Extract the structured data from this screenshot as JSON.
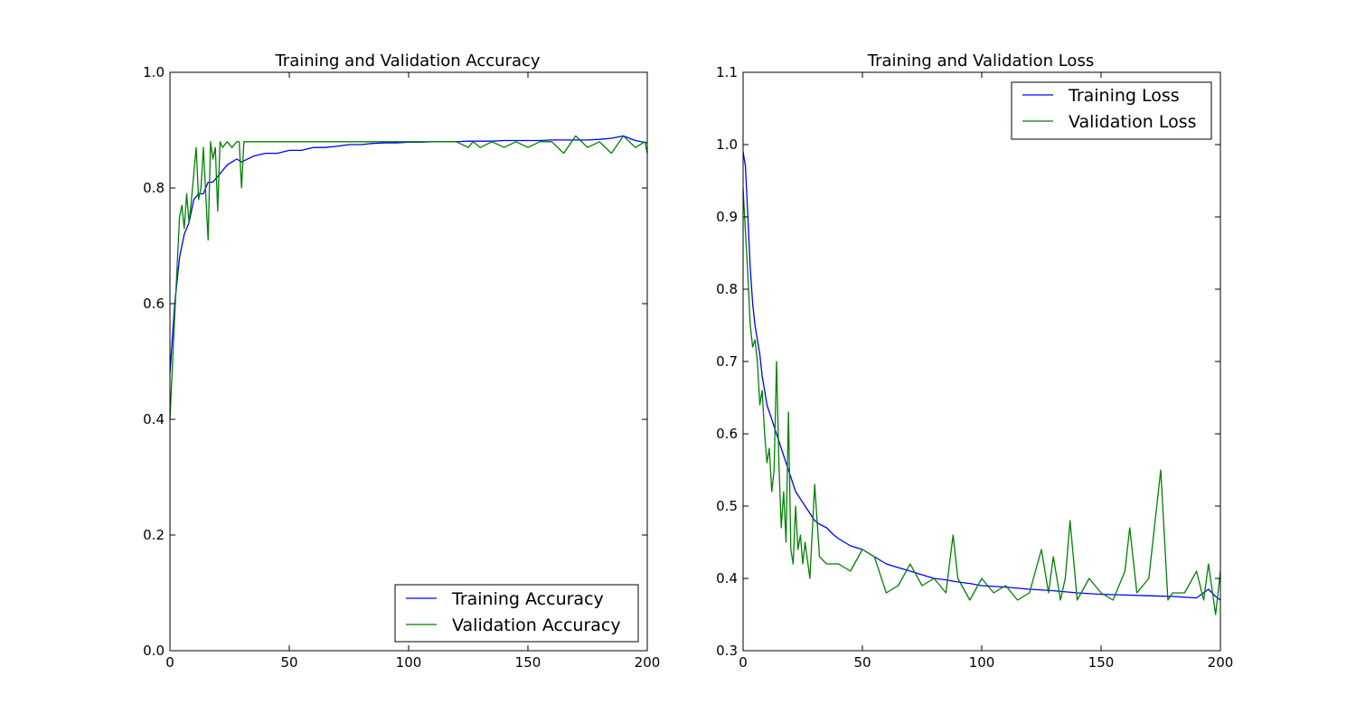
{
  "chart_data": [
    {
      "type": "line",
      "title": "Training and Validation Accuracy",
      "xlabel": "",
      "ylabel": "",
      "xlim": [
        0,
        200
      ],
      "ylim": [
        0.0,
        1.0
      ],
      "x_ticks": [
        "0",
        "50",
        "100",
        "150",
        "200"
      ],
      "y_ticks": [
        "0.0",
        "0.2",
        "0.4",
        "0.6",
        "0.8",
        "1.0"
      ],
      "legend_position": "lower-right",
      "grid": false,
      "series": [
        {
          "name": "Training Accuracy",
          "color": "#0000ff",
          "x": [
            0,
            2,
            4,
            6,
            8,
            10,
            12,
            14,
            16,
            18,
            20,
            22,
            24,
            26,
            28,
            30,
            35,
            40,
            45,
            50,
            55,
            60,
            65,
            70,
            75,
            80,
            85,
            90,
            95,
            100,
            105,
            110,
            115,
            120,
            125,
            130,
            135,
            140,
            145,
            150,
            155,
            160,
            165,
            170,
            175,
            180,
            185,
            190,
            195,
            200
          ],
          "y": [
            0.48,
            0.6,
            0.68,
            0.72,
            0.74,
            0.78,
            0.79,
            0.79,
            0.81,
            0.81,
            0.82,
            0.83,
            0.84,
            0.845,
            0.85,
            0.845,
            0.855,
            0.86,
            0.86,
            0.865,
            0.865,
            0.87,
            0.87,
            0.872,
            0.875,
            0.875,
            0.877,
            0.878,
            0.878,
            0.879,
            0.879,
            0.88,
            0.88,
            0.88,
            0.881,
            0.881,
            0.881,
            0.882,
            0.882,
            0.882,
            0.882,
            0.883,
            0.883,
            0.883,
            0.883,
            0.884,
            0.886,
            0.89,
            0.882,
            0.878
          ]
        },
        {
          "name": "Validation Accuracy",
          "color": "#008000",
          "x": [
            0,
            2,
            4,
            5,
            6,
            7,
            8,
            9,
            11,
            12,
            13,
            14,
            15,
            16,
            17,
            18,
            19,
            20,
            21,
            22,
            24,
            26,
            28,
            29,
            30,
            31,
            33,
            35,
            40,
            45,
            50,
            60,
            70,
            80,
            90,
            100,
            110,
            120,
            125,
            127,
            130,
            135,
            140,
            145,
            150,
            155,
            160,
            165,
            170,
            175,
            180,
            185,
            190,
            195,
            199,
            200
          ],
          "y": [
            0.4,
            0.58,
            0.75,
            0.77,
            0.73,
            0.79,
            0.74,
            0.78,
            0.87,
            0.78,
            0.8,
            0.87,
            0.79,
            0.71,
            0.88,
            0.85,
            0.87,
            0.76,
            0.88,
            0.87,
            0.88,
            0.87,
            0.88,
            0.88,
            0.8,
            0.88,
            0.88,
            0.88,
            0.88,
            0.88,
            0.88,
            0.88,
            0.88,
            0.88,
            0.88,
            0.88,
            0.88,
            0.88,
            0.87,
            0.88,
            0.87,
            0.88,
            0.87,
            0.88,
            0.87,
            0.88,
            0.88,
            0.86,
            0.89,
            0.87,
            0.88,
            0.86,
            0.89,
            0.87,
            0.88,
            0.86
          ]
        }
      ]
    },
    {
      "type": "line",
      "title": "Training and Validation Loss",
      "xlabel": "",
      "ylabel": "",
      "xlim": [
        0,
        200
      ],
      "ylim": [
        0.3,
        1.1
      ],
      "x_ticks": [
        "0",
        "50",
        "100",
        "150",
        "200"
      ],
      "y_ticks": [
        "0.3",
        "0.4",
        "0.5",
        "0.6",
        "0.7",
        "0.8",
        "0.9",
        "1.0",
        "1.1"
      ],
      "legend_position": "upper-right",
      "grid": false,
      "series": [
        {
          "name": "Training Loss",
          "color": "#0000ff",
          "x": [
            0,
            1,
            2,
            3,
            4,
            5,
            6,
            7,
            8,
            9,
            10,
            12,
            14,
            16,
            18,
            20,
            22,
            24,
            26,
            28,
            30,
            32,
            35,
            38,
            40,
            45,
            50,
            55,
            60,
            65,
            70,
            75,
            80,
            85,
            90,
            95,
            100,
            110,
            120,
            130,
            140,
            150,
            160,
            170,
            180,
            190,
            195,
            198,
            200
          ],
          "y": [
            0.99,
            0.97,
            0.9,
            0.83,
            0.78,
            0.75,
            0.73,
            0.71,
            0.68,
            0.66,
            0.64,
            0.62,
            0.6,
            0.58,
            0.56,
            0.54,
            0.52,
            0.51,
            0.5,
            0.49,
            0.48,
            0.475,
            0.47,
            0.46,
            0.455,
            0.445,
            0.44,
            0.43,
            0.42,
            0.415,
            0.41,
            0.405,
            0.4,
            0.398,
            0.395,
            0.393,
            0.39,
            0.388,
            0.385,
            0.383,
            0.38,
            0.378,
            0.377,
            0.376,
            0.375,
            0.373,
            0.385,
            0.375,
            0.37
          ]
        },
        {
          "name": "Validation Loss",
          "color": "#008000",
          "x": [
            0,
            1,
            2,
            3,
            4,
            5,
            6,
            7,
            8,
            9,
            10,
            11,
            12,
            13,
            14,
            15,
            16,
            17,
            18,
            19,
            20,
            21,
            22,
            23,
            24,
            25,
            26,
            28,
            30,
            32,
            35,
            40,
            45,
            50,
            55,
            60,
            65,
            70,
            75,
            80,
            85,
            88,
            90,
            95,
            100,
            105,
            110,
            115,
            120,
            125,
            128,
            130,
            133,
            135,
            137,
            140,
            145,
            150,
            155,
            160,
            162,
            165,
            170,
            175,
            178,
            180,
            185,
            190,
            193,
            195,
            198,
            200
          ],
          "y": [
            0.94,
            0.88,
            0.82,
            0.75,
            0.72,
            0.73,
            0.7,
            0.64,
            0.66,
            0.6,
            0.56,
            0.58,
            0.52,
            0.55,
            0.7,
            0.56,
            0.47,
            0.52,
            0.45,
            0.63,
            0.44,
            0.42,
            0.5,
            0.44,
            0.46,
            0.42,
            0.45,
            0.4,
            0.53,
            0.43,
            0.42,
            0.42,
            0.41,
            0.44,
            0.43,
            0.38,
            0.39,
            0.42,
            0.39,
            0.4,
            0.38,
            0.46,
            0.4,
            0.37,
            0.4,
            0.38,
            0.39,
            0.37,
            0.38,
            0.44,
            0.38,
            0.43,
            0.37,
            0.4,
            0.48,
            0.37,
            0.4,
            0.38,
            0.37,
            0.41,
            0.47,
            0.38,
            0.4,
            0.55,
            0.37,
            0.38,
            0.38,
            0.41,
            0.37,
            0.42,
            0.35,
            0.41
          ]
        }
      ]
    }
  ]
}
